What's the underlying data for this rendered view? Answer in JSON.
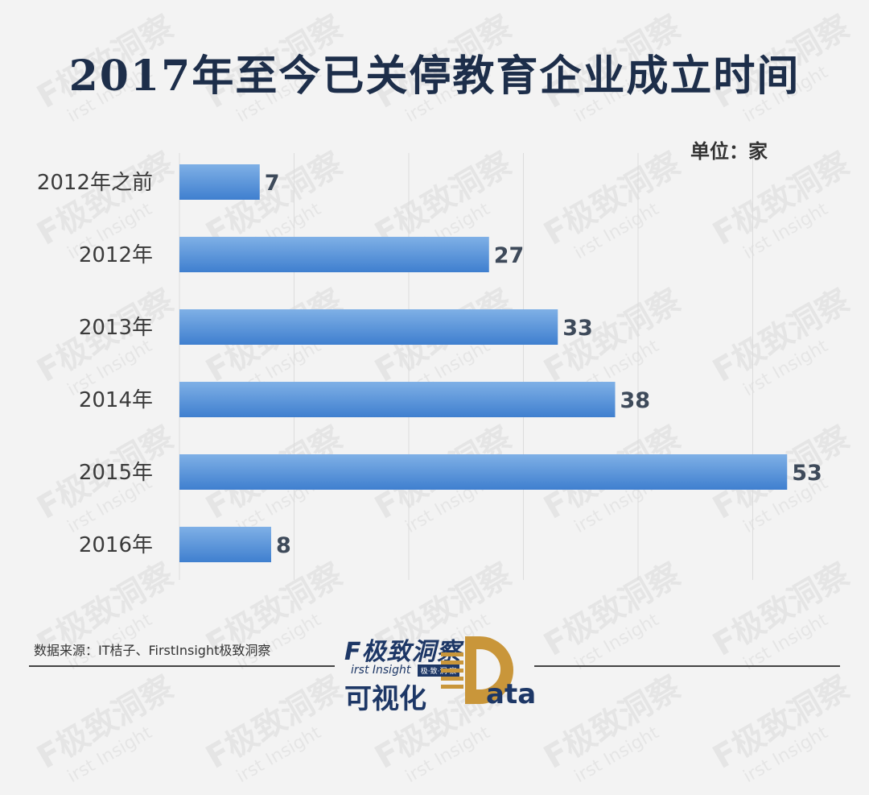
{
  "title": "2017年至今已关停教育企业成立时间",
  "unit_label": "单位：家",
  "source": "数据来源：IT桔子、FirstInsight极致洞察",
  "watermark": {
    "main": "F极致洞察",
    "sub": "irst Insight"
  },
  "logo": {
    "brand": "F极致洞察",
    "sub": "irst Insight",
    "tag": "极·致·洞·察",
    "cn": "可视化",
    "d_letter": "D",
    "ata": "ata"
  },
  "colors": {
    "bar_top": "#7fb0e6",
    "bar_bottom": "#3f7fcf",
    "title": "#1d2e4a",
    "label": "#3a3a3a",
    "value": "#3e4a5a",
    "grid": "#dcdcdc",
    "logo_blue": "#1d3766",
    "logo_gold": "#c9963a"
  },
  "chart_data": {
    "type": "bar",
    "orientation": "horizontal",
    "categories": [
      "2012年之前",
      "2012年",
      "2013年",
      "2014年",
      "2015年",
      "2016年"
    ],
    "values": [
      7,
      27,
      33,
      38,
      53,
      8
    ],
    "xlim": [
      0,
      60
    ],
    "grid": true,
    "legend": "none"
  }
}
